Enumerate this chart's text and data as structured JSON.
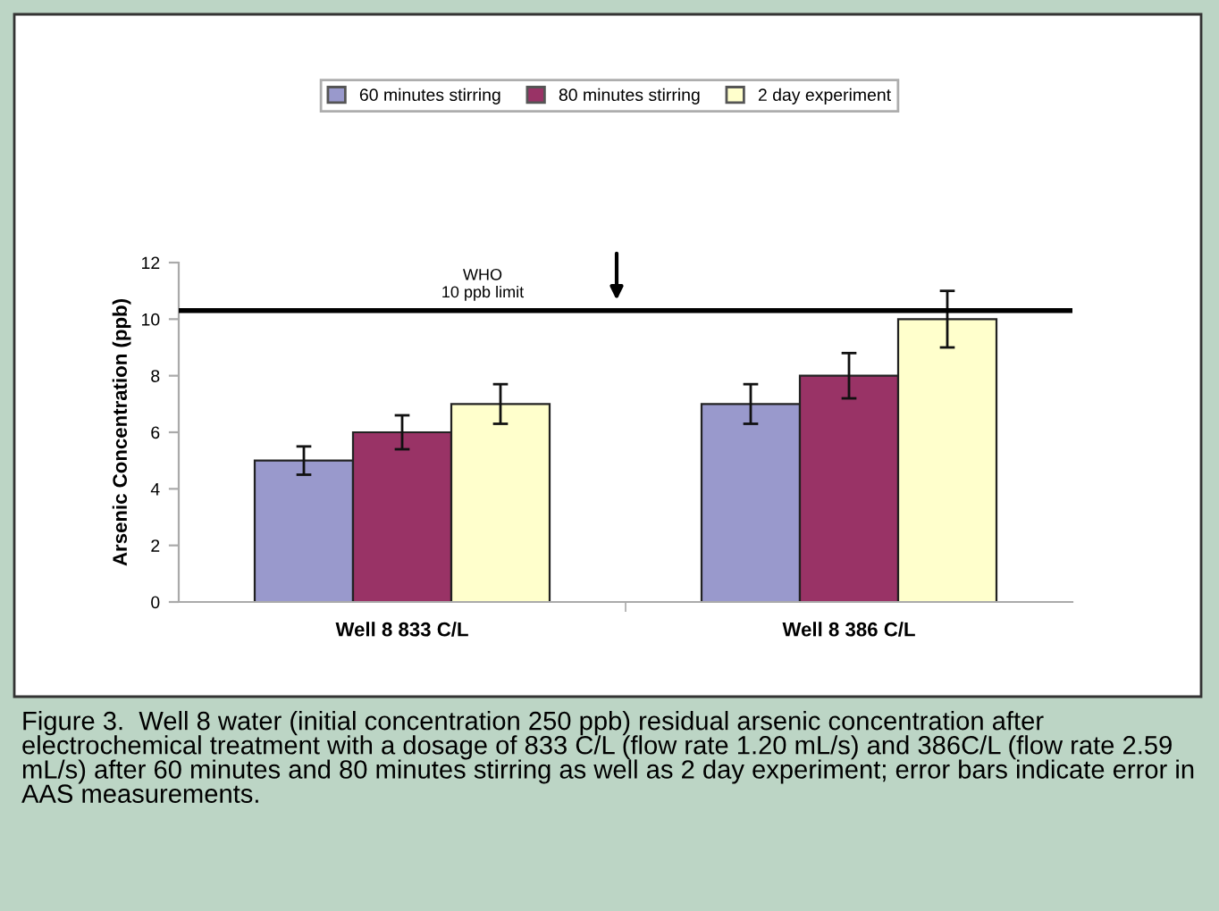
{
  "chart_data": {
    "type": "bar",
    "categories": [
      "Well 8 833 C/L",
      "Well 8 386 C/L"
    ],
    "ylabel": "Arsenic Concentration (ppb)",
    "ylim": [
      0,
      12
    ],
    "yticks": [
      0,
      2,
      4,
      6,
      8,
      10,
      12
    ],
    "grid": false,
    "legend": "top",
    "series": [
      {
        "name": "60 minutes stirring",
        "color": "#9999cc",
        "values": [
          5,
          7
        ],
        "errors": [
          0.5,
          0.7
        ]
      },
      {
        "name": "80 minutes stirring",
        "color": "#993366",
        "values": [
          6,
          8
        ],
        "errors": [
          0.6,
          0.8
        ]
      },
      {
        "name": "2 day experiment",
        "color": "#ffffcc",
        "values": [
          7,
          10
        ],
        "errors": [
          0.7,
          1.0
        ]
      }
    ],
    "ref_lines": [
      {
        "axis": "y",
        "value": 10.3,
        "label": "WHO\n10 ppb limit",
        "color": "#000000"
      }
    ],
    "annotations": [
      "Figure 3.  Well 8 water (initial concentration 250 ppb) residual arsenic concentration after electrochemical treatment with a dosage of 833 C/L (flow rate 1.20 mL/s) and 386C/L (flow rate 2.59 mL/s) after 60 minutes and 80 minutes stirring as well as 2 day experiment; error bars indicate error in AAS measurements."
    ]
  }
}
